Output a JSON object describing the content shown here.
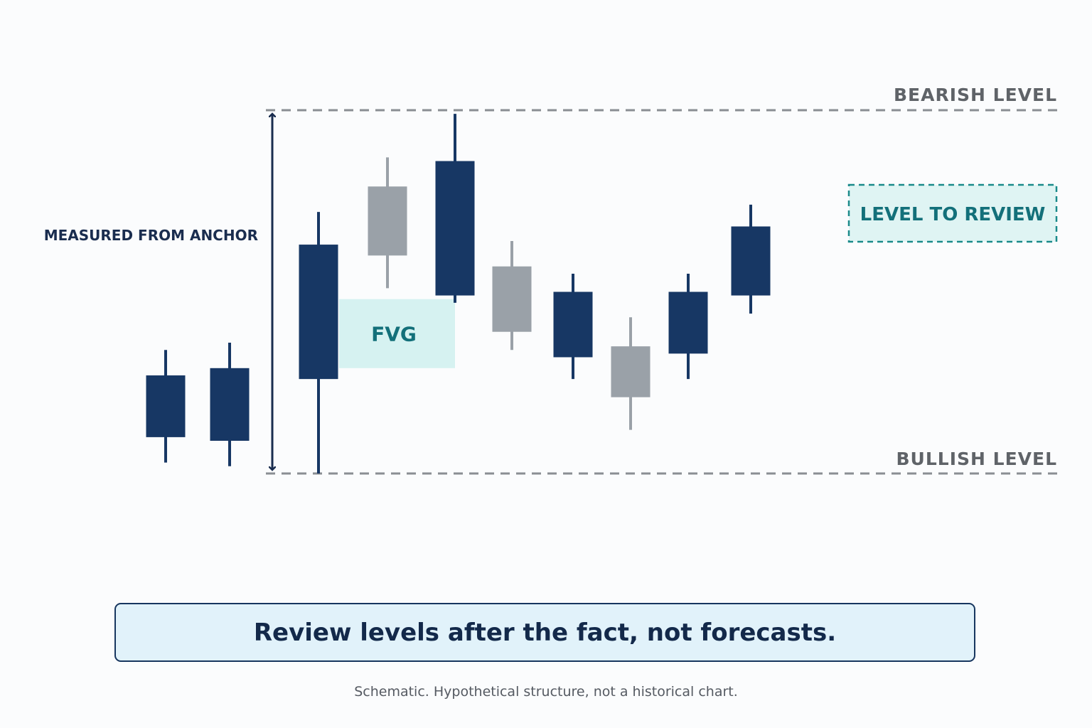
{
  "chart_data": {
    "type": "candlestick",
    "title": "",
    "candles": [
      {
        "open": 0.1,
        "close": 0.27,
        "high": 0.34,
        "low": 0.03,
        "color": "dark"
      },
      {
        "open": 0.09,
        "close": 0.29,
        "high": 0.36,
        "low": 0.02,
        "color": "dark"
      },
      {
        "open": 0.26,
        "close": 0.63,
        "high": 0.72,
        "low": 0.0,
        "color": "dark"
      },
      {
        "open": 0.6,
        "close": 0.79,
        "high": 0.87,
        "low": 0.51,
        "color": "gray"
      },
      {
        "open": 0.49,
        "close": 0.86,
        "high": 0.99,
        "low": 0.47,
        "color": "dark"
      },
      {
        "open": 0.39,
        "close": 0.57,
        "high": 0.64,
        "low": 0.34,
        "color": "gray"
      },
      {
        "open": 0.32,
        "close": 0.5,
        "high": 0.55,
        "low": 0.26,
        "color": "dark"
      },
      {
        "open": 0.21,
        "close": 0.35,
        "high": 0.43,
        "low": 0.12,
        "color": "gray"
      },
      {
        "open": 0.33,
        "close": 0.5,
        "high": 0.55,
        "low": 0.26,
        "color": "dark"
      },
      {
        "open": 0.49,
        "close": 0.68,
        "high": 0.74,
        "low": 0.44,
        "color": "dark"
      }
    ],
    "levels": {
      "bearish": {
        "label": "BEARISH LEVEL",
        "value": 1.0
      },
      "bullish": {
        "label": "BULLISH LEVEL",
        "value": 0.0
      }
    },
    "fvg": {
      "label": "FVG",
      "top": 0.48,
      "bottom": 0.29
    },
    "anchor_label": "MEASURED FROM ANCHOR",
    "review_label": "LEVEL TO REVIEW",
    "colors": {
      "dark": "#173764",
      "gray": "#9aa1a8",
      "teal": "#1a8a8a",
      "teal_text": "#13707a",
      "fvg_fill": "#d6f2f1",
      "review_fill": "#dff4f3",
      "level_line": "#8a8e93",
      "level_text": "#5f6368",
      "anchor_text": "#1a2d4f"
    }
  },
  "callout": {
    "text": "Review levels after the fact, not forecasts."
  },
  "footnote": "Schematic. Hypothetical structure, not a historical chart."
}
